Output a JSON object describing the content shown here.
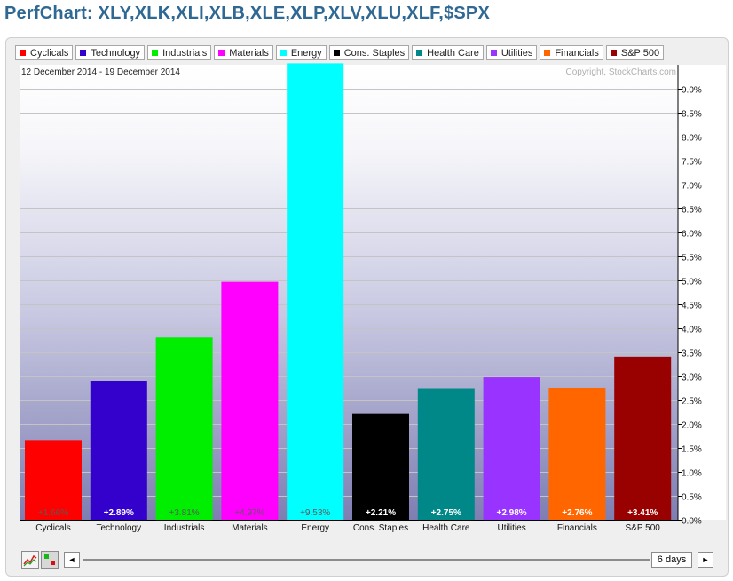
{
  "page": {
    "title": "PerfChart: XLY,XLK,XLI,XLB,XLE,XLP,XLV,XLU,XLF,$SPX"
  },
  "legend": [
    {
      "label": "Cyclicals",
      "color": "#ff0000"
    },
    {
      "label": "Technology",
      "color": "#3300cc"
    },
    {
      "label": "Industrials",
      "color": "#00ee00"
    },
    {
      "label": "Materials",
      "color": "#ff00ff"
    },
    {
      "label": "Energy",
      "color": "#00ffff"
    },
    {
      "label": "Cons. Staples",
      "color": "#000000"
    },
    {
      "label": "Health Care",
      "color": "#008888"
    },
    {
      "label": "Utilities",
      "color": "#9933ff"
    },
    {
      "label": "Financials",
      "color": "#ff6600"
    },
    {
      "label": "S&P 500",
      "color": "#990000"
    }
  ],
  "chart_data": {
    "type": "bar",
    "date_range": "12 December 2014 - 19 December 2014",
    "copyright": "Copyright, StockCharts.com",
    "categories": [
      "Cyclicals",
      "Technology",
      "Industrials",
      "Materials",
      "Energy",
      "Cons. Staples",
      "Health Care",
      "Utilities",
      "Financials",
      "S&P 500"
    ],
    "values": [
      1.66,
      2.89,
      3.81,
      4.97,
      9.53,
      2.21,
      2.75,
      2.98,
      2.76,
      3.41
    ],
    "value_labels": [
      "+1.66%",
      "+2.89%",
      "+3.81%",
      "+4.97%",
      "+9.53%",
      "+2.21%",
      "+2.75%",
      "+2.98%",
      "+2.76%",
      "+3.41%"
    ],
    "colors": [
      "#ff0000",
      "#3300cc",
      "#00ee00",
      "#ff00ff",
      "#00ffff",
      "#000000",
      "#008888",
      "#9933ff",
      "#ff6600",
      "#990000"
    ],
    "ylim": [
      0,
      9.5
    ],
    "yticks": [
      0,
      0.5,
      1,
      1.5,
      2,
      2.5,
      3,
      3.5,
      4,
      4.5,
      5,
      5.5,
      6,
      6.5,
      7,
      7.5,
      8,
      8.5,
      9
    ],
    "ytick_labels": [
      "0.0%",
      "0.5%",
      "1.0%",
      "1.5%",
      "2.0%",
      "2.5%",
      "3.0%",
      "3.5%",
      "4.0%",
      "4.5%",
      "5.0%",
      "5.5%",
      "6.0%",
      "6.5%",
      "7.0%",
      "7.5%",
      "8.0%",
      "8.5%",
      "9.0%"
    ],
    "yaxis_position": "right",
    "grid": true
  },
  "controls": {
    "period_label": "6 days",
    "prev_symbol": "◄",
    "next_symbol": "►",
    "chart_type_icon": "line-chart-icon",
    "bar_toggle_icon": "bar-toggle-icon"
  }
}
